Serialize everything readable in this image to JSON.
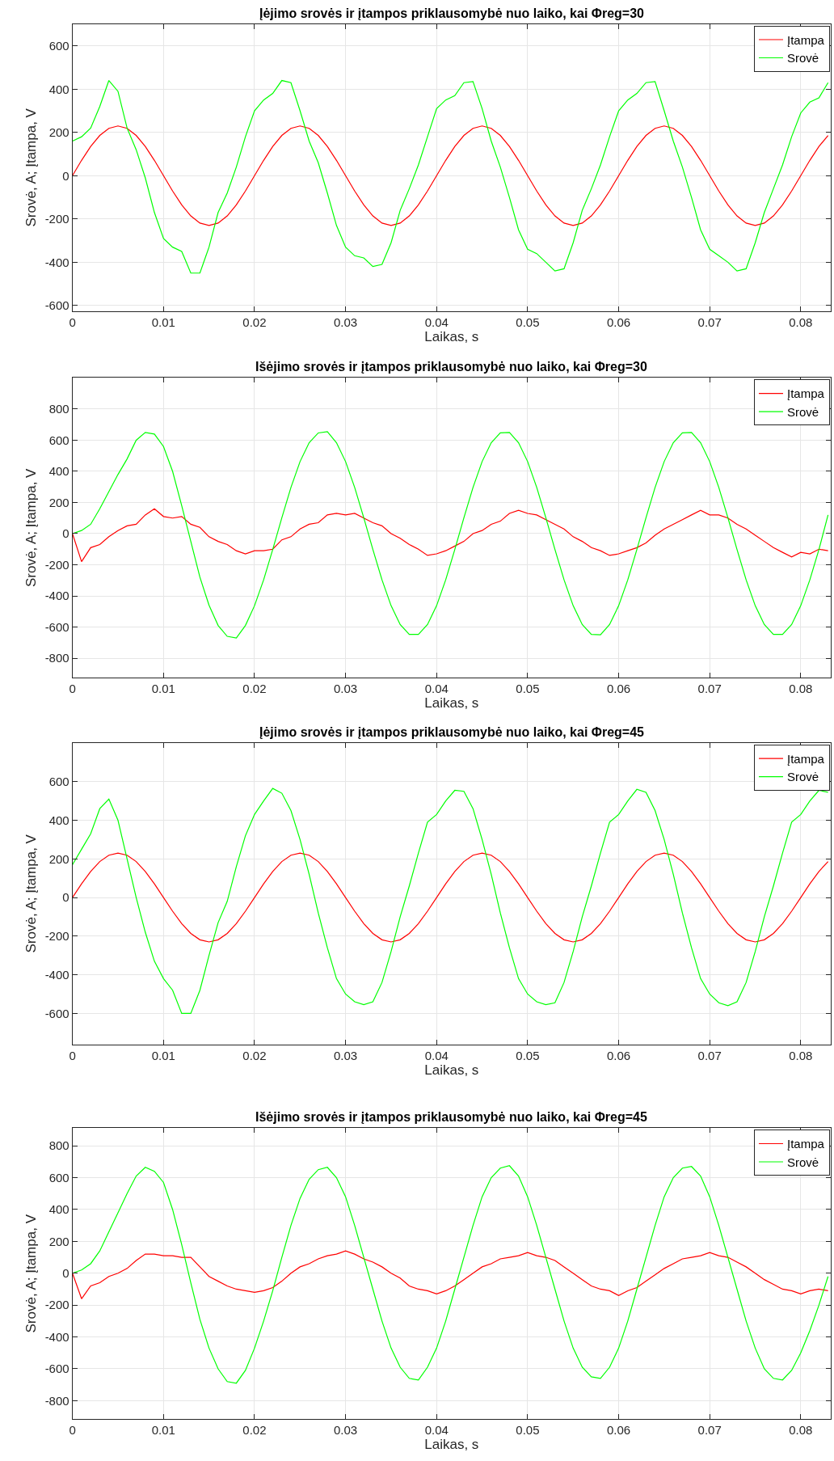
{
  "chart_data": [
    {
      "type": "line",
      "title": "Įėjimo srovės ir įtampos priklausomybė nuo laiko, kai Φreg=30",
      "xlabel": "Laikas, s",
      "ylabel": "Srovė, A; Įtampa, V",
      "grid": true,
      "legend": "top right",
      "xlim": [
        0,
        0.0833
      ],
      "xticks": [
        0,
        0.01,
        0.02,
        0.03,
        0.04,
        0.05,
        0.06,
        0.07,
        0.08
      ],
      "ylim": [
        -625,
        700
      ],
      "yticks": [
        -600,
        -400,
        -200,
        0,
        200,
        400,
        600
      ],
      "x": [
        0,
        0.001,
        0.002,
        0.003,
        0.004,
        0.005,
        0.006,
        0.007,
        0.008,
        0.009,
        0.01,
        0.011,
        0.012,
        0.013,
        0.014,
        0.015,
        0.016,
        0.017,
        0.018,
        0.019,
        0.02,
        0.021,
        0.022,
        0.023,
        0.024,
        0.025,
        0.026,
        0.027,
        0.028,
        0.029,
        0.03,
        0.031,
        0.032,
        0.033,
        0.034,
        0.035,
        0.036,
        0.037,
        0.038,
        0.039,
        0.04,
        0.041,
        0.042,
        0.043,
        0.044,
        0.045,
        0.046,
        0.047,
        0.048,
        0.049,
        0.05,
        0.051,
        0.052,
        0.053,
        0.054,
        0.055,
        0.056,
        0.057,
        0.058,
        0.059,
        0.06,
        0.061,
        0.062,
        0.063,
        0.064,
        0.065,
        0.066,
        0.067,
        0.068,
        0.069,
        0.07,
        0.071,
        0.072,
        0.073,
        0.074,
        0.075,
        0.076,
        0.077,
        0.078,
        0.079,
        0.08,
        0.081,
        0.082,
        0.083
      ],
      "series": [
        {
          "name": "Įtampa",
          "color": "#ff0000",
          "values": [
            0,
            71,
            135,
            186,
            219,
            230,
            219,
            186,
            135,
            71,
            0,
            -71,
            -135,
            -186,
            -219,
            -230,
            -219,
            -186,
            -135,
            -71,
            0,
            71,
            135,
            186,
            219,
            230,
            219,
            186,
            135,
            71,
            0,
            -71,
            -135,
            -186,
            -219,
            -230,
            -219,
            -186,
            -135,
            -71,
            0,
            71,
            135,
            186,
            219,
            230,
            219,
            186,
            135,
            71,
            0,
            -71,
            -135,
            -186,
            -219,
            -230,
            -219,
            -186,
            -135,
            -71,
            0,
            71,
            135,
            186,
            219,
            230,
            219,
            186,
            135,
            71,
            0,
            -71,
            -135,
            -186,
            -219,
            -230,
            -219,
            -186,
            -135,
            -71,
            0,
            71,
            135,
            186
          ]
        },
        {
          "name": "Srovė",
          "color": "#00ff00",
          "values": [
            160,
            180,
            220,
            320,
            440,
            390,
            220,
            120,
            -10,
            -170,
            -290,
            -330,
            -350,
            -450,
            -450,
            -330,
            -170,
            -80,
            40,
            180,
            300,
            350,
            380,
            440,
            430,
            300,
            160,
            60,
            -80,
            -230,
            -330,
            -370,
            -380,
            -420,
            -410,
            -310,
            -160,
            -60,
            50,
            180,
            310,
            350,
            370,
            430,
            435,
            310,
            160,
            40,
            -100,
            -250,
            -340,
            -360,
            -400,
            -440,
            -430,
            -310,
            -160,
            -60,
            50,
            180,
            300,
            350,
            380,
            430,
            435,
            300,
            160,
            40,
            -100,
            -250,
            -340,
            -370,
            -400,
            -440,
            -430,
            -310,
            -170,
            -60,
            50,
            180,
            290,
            340,
            360,
            430
          ]
        }
      ]
    },
    {
      "type": "line",
      "title": "Išėjimo srovės ir įtampos priklausomybė nuo laiko, kai Φreg=30",
      "xlabel": "Laikas, s",
      "ylabel": "Srovė, A; Įtampa, V",
      "grid": true,
      "legend": "top right",
      "xlim": [
        0,
        0.0833
      ],
      "xticks": [
        0,
        0.01,
        0.02,
        0.03,
        0.04,
        0.05,
        0.06,
        0.07,
        0.08
      ],
      "ylim": [
        -925,
        1000
      ],
      "yticks": [
        -800,
        -600,
        -400,
        -200,
        0,
        200,
        400,
        600,
        800
      ],
      "x": [
        0,
        0.001,
        0.002,
        0.003,
        0.004,
        0.005,
        0.006,
        0.007,
        0.008,
        0.009,
        0.01,
        0.011,
        0.012,
        0.013,
        0.014,
        0.015,
        0.016,
        0.017,
        0.018,
        0.019,
        0.02,
        0.021,
        0.022,
        0.023,
        0.024,
        0.025,
        0.026,
        0.027,
        0.028,
        0.029,
        0.03,
        0.031,
        0.032,
        0.033,
        0.034,
        0.035,
        0.036,
        0.037,
        0.038,
        0.039,
        0.04,
        0.041,
        0.042,
        0.043,
        0.044,
        0.045,
        0.046,
        0.047,
        0.048,
        0.049,
        0.05,
        0.051,
        0.052,
        0.053,
        0.054,
        0.055,
        0.056,
        0.057,
        0.058,
        0.059,
        0.06,
        0.061,
        0.062,
        0.063,
        0.064,
        0.065,
        0.066,
        0.067,
        0.068,
        0.069,
        0.07,
        0.071,
        0.072,
        0.073,
        0.074,
        0.075,
        0.076,
        0.077,
        0.078,
        0.079,
        0.08,
        0.081,
        0.082,
        0.083
      ],
      "series": [
        {
          "name": "Įtampa",
          "color": "#ff0000",
          "values": [
            0,
            -180,
            -90,
            -70,
            -20,
            20,
            50,
            60,
            120,
            160,
            110,
            100,
            110,
            60,
            40,
            -20,
            -50,
            -70,
            -110,
            -130,
            -110,
            -110,
            -100,
            -40,
            -20,
            30,
            60,
            70,
            120,
            130,
            120,
            130,
            100,
            70,
            50,
            0,
            -30,
            -70,
            -100,
            -140,
            -130,
            -110,
            -80,
            -50,
            0,
            20,
            60,
            80,
            130,
            150,
            130,
            120,
            90,
            60,
            30,
            -20,
            -50,
            -90,
            -110,
            -140,
            -130,
            -110,
            -90,
            -60,
            -10,
            30,
            60,
            90,
            120,
            150,
            120,
            120,
            100,
            60,
            30,
            -10,
            -50,
            -90,
            -120,
            -150,
            -120,
            -130,
            -100,
            -110
          ]
        },
        {
          "name": "Srovė",
          "color": "#00ff00",
          "values": [
            0,
            20,
            60,
            160,
            270,
            380,
            480,
            600,
            650,
            640,
            560,
            400,
            180,
            -50,
            -280,
            -460,
            -590,
            -660,
            -670,
            -590,
            -463,
            -297,
            -102,
            102,
            297,
            463,
            584,
            647,
            655,
            584,
            463,
            297,
            102,
            -102,
            -297,
            -463,
            -584,
            -647,
            -647,
            -584,
            -463,
            -297,
            -102,
            102,
            297,
            463,
            584,
            647,
            650,
            584,
            463,
            297,
            102,
            -102,
            -297,
            -463,
            -584,
            -647,
            -650,
            -584,
            -463,
            -297,
            -102,
            102,
            297,
            463,
            584,
            647,
            650,
            584,
            463,
            297,
            102,
            -102,
            -297,
            -463,
            -584,
            -647,
            -647,
            -584,
            -463,
            -297,
            -102,
            120
          ]
        }
      ]
    },
    {
      "type": "line",
      "title": "Įėjimo srovės ir įtampos priklausomybė nuo laiko, kai Φreg=45",
      "xlabel": "Laikas, s",
      "ylabel": "Srovė, A; Įtampa, V",
      "grid": true,
      "legend": "top right",
      "xlim": [
        0,
        0.0833
      ],
      "xticks": [
        0,
        0.01,
        0.02,
        0.03,
        0.04,
        0.05,
        0.06,
        0.07,
        0.08
      ],
      "ylim": [
        -760,
        800
      ],
      "yticks": [
        -600,
        -400,
        -200,
        0,
        200,
        400,
        600
      ],
      "x": [
        0,
        0.001,
        0.002,
        0.003,
        0.004,
        0.005,
        0.006,
        0.007,
        0.008,
        0.009,
        0.01,
        0.011,
        0.012,
        0.013,
        0.014,
        0.015,
        0.016,
        0.017,
        0.018,
        0.019,
        0.02,
        0.021,
        0.022,
        0.023,
        0.024,
        0.025,
        0.026,
        0.027,
        0.028,
        0.029,
        0.03,
        0.031,
        0.032,
        0.033,
        0.034,
        0.035,
        0.036,
        0.037,
        0.038,
        0.039,
        0.04,
        0.041,
        0.042,
        0.043,
        0.044,
        0.045,
        0.046,
        0.047,
        0.048,
        0.049,
        0.05,
        0.051,
        0.052,
        0.053,
        0.054,
        0.055,
        0.056,
        0.057,
        0.058,
        0.059,
        0.06,
        0.061,
        0.062,
        0.063,
        0.064,
        0.065,
        0.066,
        0.067,
        0.068,
        0.069,
        0.07,
        0.071,
        0.072,
        0.073,
        0.074,
        0.075,
        0.076,
        0.077,
        0.078,
        0.079,
        0.08,
        0.081,
        0.082,
        0.083
      ],
      "series": [
        {
          "name": "Įtampa",
          "color": "#ff0000",
          "values": [
            0,
            71,
            135,
            186,
            219,
            230,
            219,
            186,
            135,
            71,
            0,
            -71,
            -135,
            -186,
            -219,
            -230,
            -219,
            -186,
            -135,
            -71,
            0,
            71,
            135,
            186,
            219,
            230,
            219,
            186,
            135,
            71,
            0,
            -71,
            -135,
            -186,
            -219,
            -230,
            -219,
            -186,
            -135,
            -71,
            0,
            71,
            135,
            186,
            219,
            230,
            219,
            186,
            135,
            71,
            0,
            -71,
            -135,
            -186,
            -219,
            -230,
            -219,
            -186,
            -135,
            -71,
            0,
            71,
            135,
            186,
            219,
            230,
            219,
            186,
            135,
            71,
            0,
            -71,
            -135,
            -186,
            -219,
            -230,
            -219,
            -186,
            -135,
            -71,
            0,
            71,
            135,
            186
          ]
        },
        {
          "name": "Srovė",
          "color": "#00ff00",
          "values": [
            170,
            250,
            330,
            460,
            510,
            400,
            200,
            0,
            -180,
            -330,
            -420,
            -480,
            -600,
            -600,
            -480,
            -300,
            -130,
            -20,
            160,
            320,
            430,
            500,
            565,
            540,
            450,
            300,
            120,
            -80,
            -260,
            -420,
            -500,
            -540,
            -555,
            -540,
            -440,
            -280,
            -100,
            60,
            230,
            390,
            430,
            500,
            555,
            550,
            460,
            300,
            120,
            -80,
            -260,
            -420,
            -500,
            -540,
            -555,
            -545,
            -440,
            -280,
            -100,
            60,
            230,
            390,
            430,
            500,
            560,
            545,
            450,
            300,
            120,
            -80,
            -260,
            -420,
            -500,
            -545,
            -560,
            -540,
            -440,
            -280,
            -100,
            60,
            230,
            390,
            430,
            500,
            555,
            545
          ]
        }
      ]
    },
    {
      "type": "line",
      "title": "Išėjimo srovės ir įtampos priklausomybė nuo laiko, kai Φreg=45",
      "xlabel": "Laikas, s",
      "ylabel": "Srovė, A; Įtampa, V",
      "grid": true,
      "legend": "top right",
      "xlim": [
        0,
        0.0833
      ],
      "xticks": [
        0,
        0.01,
        0.02,
        0.03,
        0.04,
        0.05,
        0.06,
        0.07,
        0.08
      ],
      "ylim": [
        -915,
        910
      ],
      "yticks": [
        -800,
        -600,
        -400,
        -200,
        0,
        200,
        400,
        600,
        800
      ],
      "x": [
        0,
        0.001,
        0.002,
        0.003,
        0.004,
        0.005,
        0.006,
        0.007,
        0.008,
        0.009,
        0.01,
        0.011,
        0.012,
        0.013,
        0.014,
        0.015,
        0.016,
        0.017,
        0.018,
        0.019,
        0.02,
        0.021,
        0.022,
        0.023,
        0.024,
        0.025,
        0.026,
        0.027,
        0.028,
        0.029,
        0.03,
        0.031,
        0.032,
        0.033,
        0.034,
        0.035,
        0.036,
        0.037,
        0.038,
        0.039,
        0.04,
        0.041,
        0.042,
        0.043,
        0.044,
        0.045,
        0.046,
        0.047,
        0.048,
        0.049,
        0.05,
        0.051,
        0.052,
        0.053,
        0.054,
        0.055,
        0.056,
        0.057,
        0.058,
        0.059,
        0.06,
        0.061,
        0.062,
        0.063,
        0.064,
        0.065,
        0.066,
        0.067,
        0.068,
        0.069,
        0.07,
        0.071,
        0.072,
        0.073,
        0.074,
        0.075,
        0.076,
        0.077,
        0.078,
        0.079,
        0.08,
        0.081,
        0.082,
        0.083
      ],
      "series": [
        {
          "name": "Įtampa",
          "color": "#ff0000",
          "values": [
            0,
            -160,
            -80,
            -60,
            -20,
            0,
            30,
            80,
            120,
            120,
            110,
            110,
            100,
            100,
            40,
            -20,
            -50,
            -80,
            -100,
            -110,
            -120,
            -110,
            -90,
            -50,
            0,
            40,
            60,
            90,
            110,
            120,
            140,
            120,
            90,
            70,
            40,
            0,
            -30,
            -80,
            -100,
            -110,
            -130,
            -110,
            -80,
            -40,
            0,
            40,
            60,
            90,
            100,
            110,
            130,
            110,
            100,
            80,
            40,
            0,
            -40,
            -80,
            -100,
            -110,
            -140,
            -110,
            -90,
            -50,
            -10,
            30,
            60,
            90,
            100,
            110,
            130,
            110,
            100,
            70,
            40,
            0,
            -40,
            -70,
            -100,
            -110,
            -130,
            -110,
            -100,
            -110
          ]
        },
        {
          "name": "Srovė",
          "color": "#00ff00",
          "values": [
            0,
            20,
            60,
            140,
            260,
            380,
            500,
            610,
            665,
            640,
            570,
            400,
            180,
            -60,
            -290,
            -470,
            -600,
            -680,
            -690,
            -610,
            -470,
            -300,
            -110,
            100,
            300,
            470,
            590,
            650,
            665,
            600,
            480,
            300,
            100,
            -100,
            -300,
            -470,
            -590,
            -660,
            -670,
            -590,
            -470,
            -300,
            -100,
            100,
            300,
            480,
            600,
            660,
            675,
            610,
            480,
            300,
            100,
            -100,
            -300,
            -470,
            -590,
            -650,
            -660,
            -590,
            -470,
            -300,
            -100,
            100,
            300,
            480,
            600,
            660,
            670,
            610,
            480,
            300,
            100,
            -100,
            -300,
            -470,
            -600,
            -660,
            -670,
            -610,
            -500,
            -360,
            -200,
            -20
          ]
        }
      ]
    }
  ]
}
